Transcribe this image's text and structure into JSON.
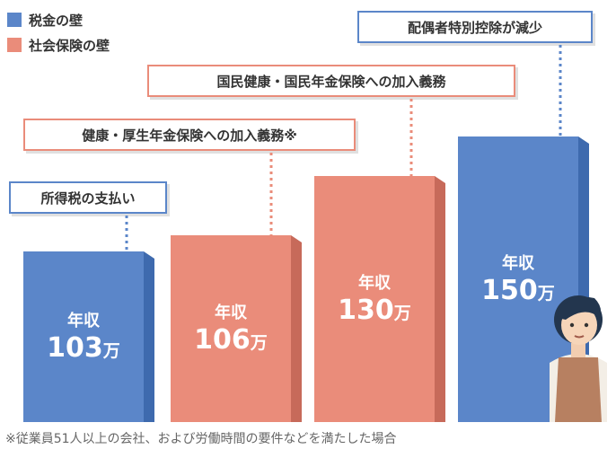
{
  "chart_data": {
    "type": "bar",
    "categories": [
      "年収103万",
      "年収106万",
      "年収130万",
      "年収150万"
    ],
    "bars": [
      {
        "label_top": "年収",
        "label_value": "103",
        "label_unit": "万",
        "value": 103,
        "wall": "tax"
      },
      {
        "label_top": "年収",
        "label_value": "106",
        "label_unit": "万",
        "value": 106,
        "wall": "social"
      },
      {
        "label_top": "年収",
        "label_value": "130",
        "label_unit": "万",
        "value": 130,
        "wall": "social"
      },
      {
        "label_top": "年収",
        "label_value": "150",
        "label_unit": "万",
        "value": 150,
        "wall": "tax"
      }
    ],
    "callouts": [
      "所得税の支払い",
      "健康・厚生年金保険への加入義務※",
      "国民健康・国民年金保険への加入義務",
      "配偶者特別控除が減少"
    ],
    "legend": [
      {
        "key": "tax",
        "label": "税金の壁",
        "color": "#5b86c9"
      },
      {
        "key": "social",
        "label": "社会保険の壁",
        "color": "#ea8c7a"
      }
    ],
    "ylim": [
      0,
      150
    ]
  },
  "footnote": "※従業員51人以上の会社、および労働時間の要件などを満たした場合",
  "colors": {
    "tax": "#5b86c9",
    "tax_dark": "#3e6aae",
    "social": "#ea8c7a",
    "social_dark": "#c76a5a"
  }
}
